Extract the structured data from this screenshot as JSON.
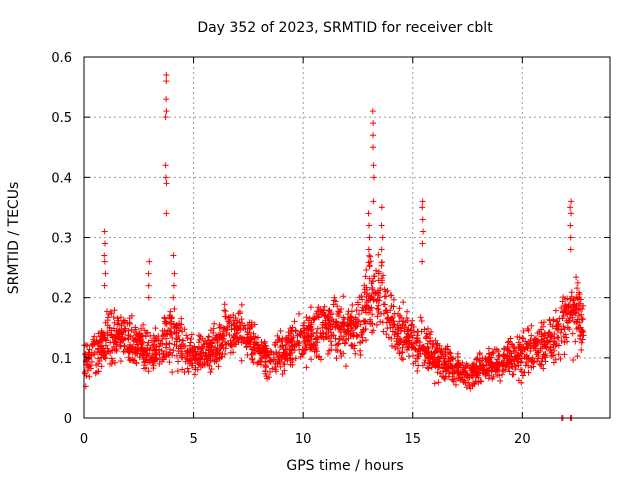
{
  "chart_data": {
    "type": "scatter",
    "title": "Day 352 of 2023, SRMTID for receiver cblt",
    "xlabel": "GPS time / hours",
    "ylabel": "SRMTID / TECUs",
    "xlim": [
      0,
      24
    ],
    "ylim": [
      0,
      0.6
    ],
    "xticks": [
      0,
      5,
      10,
      15,
      20
    ],
    "xtick_labels": [
      "0",
      "5",
      "10",
      "15",
      "20"
    ],
    "yticks": [
      0,
      0.1,
      0.2,
      0.3,
      0.4,
      0.5,
      0.6
    ],
    "ytick_labels": [
      "0",
      "0.1",
      "0.2",
      "0.3",
      "0.4",
      "0.5",
      "0.6"
    ],
    "grid": true,
    "legend": "none",
    "series": [
      {
        "name": "SRMTID",
        "marker": "+",
        "color": "#ff0000",
        "trend": {
          "x": [
            0,
            0.5,
            1,
            1.5,
            2,
            2.5,
            3,
            3.5,
            4,
            4.5,
            5,
            5.5,
            6,
            6.5,
            7,
            7.5,
            8,
            8.5,
            9,
            9.5,
            10,
            10.5,
            11,
            11.5,
            12,
            12.5,
            13,
            13.5,
            14,
            14.5,
            15,
            15.5,
            16,
            16.5,
            17,
            17.5,
            18,
            18.5,
            19,
            19.5,
            20,
            20.5,
            21,
            21.5,
            22,
            22.5,
            22.8
          ],
          "y": [
            0.09,
            0.11,
            0.13,
            0.14,
            0.13,
            0.12,
            0.11,
            0.12,
            0.14,
            0.12,
            0.1,
            0.1,
            0.12,
            0.14,
            0.15,
            0.13,
            0.11,
            0.1,
            0.11,
            0.12,
            0.13,
            0.14,
            0.15,
            0.15,
            0.14,
            0.15,
            0.2,
            0.21,
            0.17,
            0.14,
            0.13,
            0.12,
            0.1,
            0.09,
            0.08,
            0.07,
            0.08,
            0.09,
            0.09,
            0.1,
            0.1,
            0.12,
            0.12,
            0.13,
            0.18,
            0.17,
            0.15
          ],
          "scatter": [
            0.03,
            0.032,
            0.035,
            0.038,
            0.035,
            0.032,
            0.03,
            0.035,
            0.045,
            0.035,
            0.03,
            0.028,
            0.032,
            0.035,
            0.035,
            0.035,
            0.03,
            0.028,
            0.03,
            0.032,
            0.035,
            0.038,
            0.04,
            0.04,
            0.04,
            0.045,
            0.06,
            0.06,
            0.05,
            0.04,
            0.035,
            0.035,
            0.03,
            0.025,
            0.022,
            0.02,
            0.02,
            0.022,
            0.025,
            0.028,
            0.03,
            0.035,
            0.035,
            0.04,
            0.05,
            0.05,
            0.04
          ]
        },
        "spikes": [
          {
            "x": 0.95,
            "y": [
              0.22,
              0.24,
              0.26,
              0.27,
              0.29,
              0.31
            ]
          },
          {
            "x": 2.95,
            "y": [
              0.2,
              0.22,
              0.24,
              0.26
            ]
          },
          {
            "x": 3.75,
            "y": [
              0.34,
              0.39,
              0.4,
              0.42,
              0.5,
              0.51,
              0.53,
              0.56,
              0.57
            ]
          },
          {
            "x": 4.1,
            "y": [
              0.2,
              0.22,
              0.24,
              0.27
            ]
          },
          {
            "x": 13.2,
            "y": [
              0.36,
              0.4,
              0.42,
              0.45,
              0.47,
              0.49,
              0.51
            ]
          },
          {
            "x": 13.0,
            "y": [
              0.28,
              0.3,
              0.32,
              0.34
            ]
          },
          {
            "x": 13.6,
            "y": [
              0.28,
              0.3,
              0.32,
              0.35
            ]
          },
          {
            "x": 15.45,
            "y": [
              0.26,
              0.29,
              0.31,
              0.33,
              0.35,
              0.36
            ]
          },
          {
            "x": 22.2,
            "y": [
              0.28,
              0.3,
              0.32,
              0.34,
              0.35,
              0.36
            ]
          },
          {
            "x": 22.6,
            "y": [
              0.17,
              0.18,
              0.19,
              0.2
            ]
          }
        ],
        "baseline_points": {
          "x": [
            21.8,
            21.85,
            22.2,
            22.25
          ],
          "y": [
            0,
            0,
            0,
            0
          ]
        }
      }
    ]
  }
}
